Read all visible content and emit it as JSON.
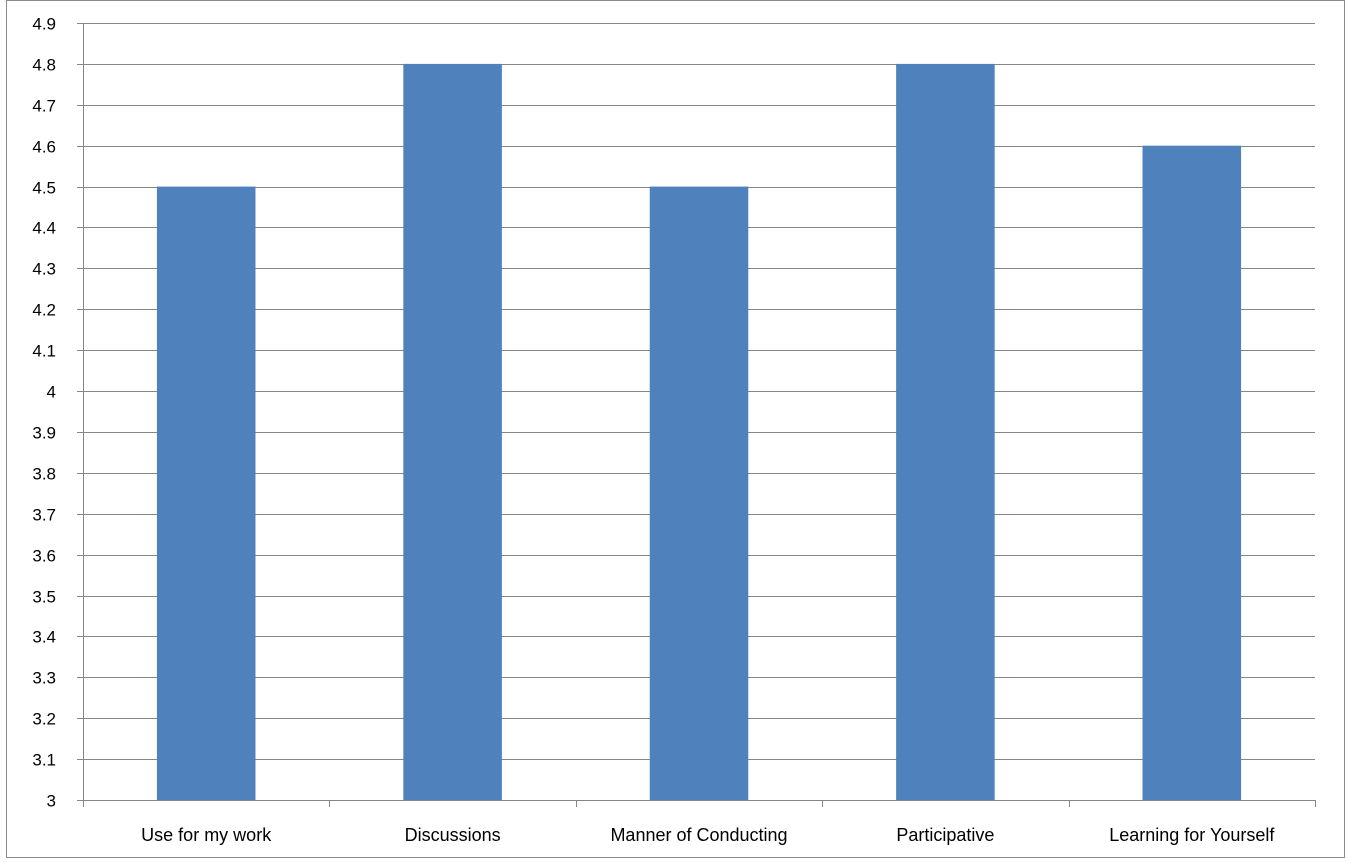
{
  "chart_data": {
    "type": "bar",
    "categories": [
      "Use for my work",
      "Discussions",
      "Manner of Conducting",
      "Participative",
      "Learning for Yourself"
    ],
    "values": [
      4.5,
      4.8,
      4.5,
      4.8,
      4.6
    ],
    "title": "",
    "xlabel": "",
    "ylabel": "",
    "ylim": [
      3,
      4.9
    ],
    "ytick_step": 0.1,
    "yticks": [
      "3",
      "3.1",
      "3.2",
      "3.3",
      "3.4",
      "3.5",
      "3.6",
      "3.7",
      "3.8",
      "3.9",
      "4",
      "4.1",
      "4.2",
      "4.3",
      "4.4",
      "4.5",
      "4.6",
      "4.7",
      "4.8",
      "4.9"
    ],
    "grid": true,
    "legend": "none",
    "bar_color": "#4f81bd",
    "grid_color": "#868686"
  }
}
